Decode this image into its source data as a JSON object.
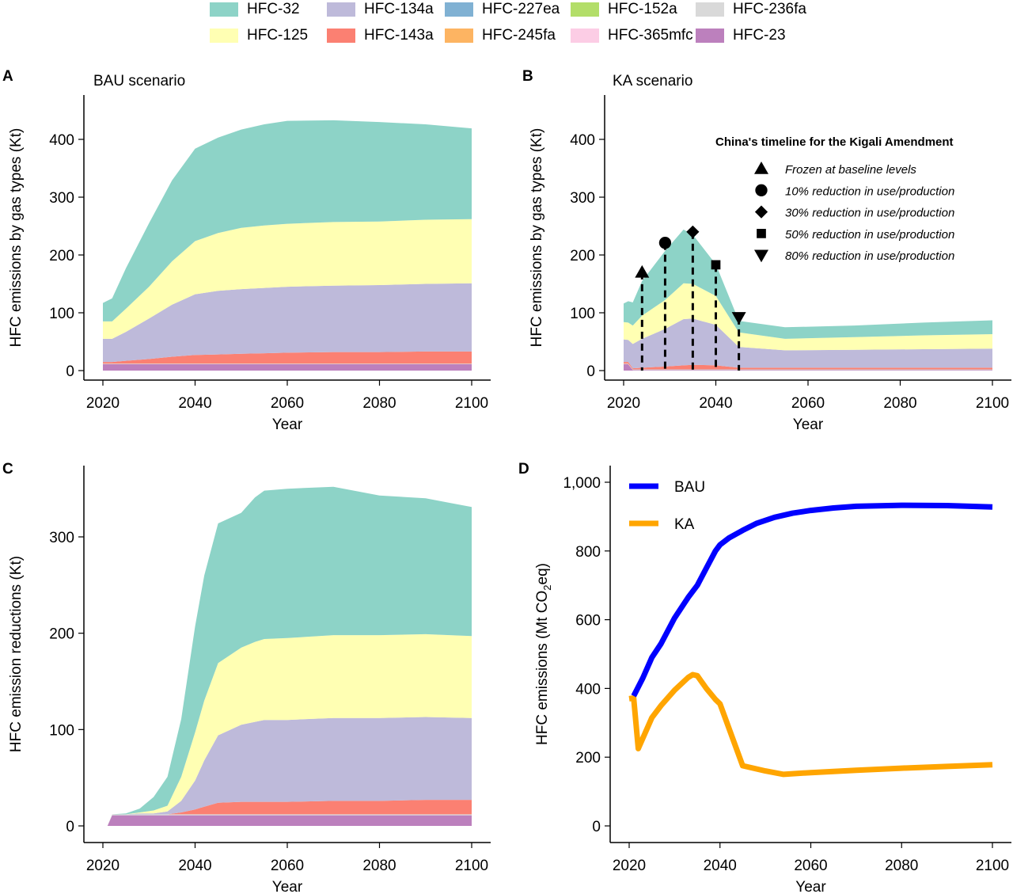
{
  "legend": {
    "items": [
      {
        "name": "HFC-32",
        "color": "#8DD3C7"
      },
      {
        "name": "HFC-134a",
        "color": "#BEBADA"
      },
      {
        "name": "HFC-227ea",
        "color": "#80B1D3"
      },
      {
        "name": "HFC-152a",
        "color": "#B3DE69"
      },
      {
        "name": "HFC-236fa",
        "color": "#D9D9D9"
      },
      {
        "name": "HFC-125",
        "color": "#FFFFB3"
      },
      {
        "name": "HFC-143a",
        "color": "#FB8072"
      },
      {
        "name": "HFC-245fa",
        "color": "#FDB462"
      },
      {
        "name": "HFC-365mfc",
        "color": "#FCCDE5"
      },
      {
        "name": "HFC-23",
        "color": "#BC80BD"
      }
    ]
  },
  "chart_data": [
    {
      "panel": "A",
      "type": "area",
      "stacked": true,
      "title": "BAU scenario",
      "xlabel": "Year",
      "ylabel": "HFC emissions by gas types (Kt)",
      "xlim": [
        2020,
        2100
      ],
      "ylim": [
        0,
        460
      ],
      "xticks": [
        2020,
        2040,
        2060,
        2080,
        2100
      ],
      "yticks": [
        0,
        100,
        200,
        300,
        400
      ],
      "x": [
        2020,
        2022,
        2025,
        2030,
        2035,
        2040,
        2045,
        2050,
        2055,
        2060,
        2070,
        2080,
        2090,
        2100
      ],
      "series": [
        {
          "name": "HFC-23",
          "values": [
            11,
            11,
            11,
            11,
            11,
            11,
            11,
            11,
            11,
            11,
            11,
            11,
            11,
            11
          ]
        },
        {
          "name": "HFC-236fa",
          "values": [
            1,
            1,
            1,
            1,
            1,
            1,
            1,
            1,
            1,
            1,
            1,
            1,
            1,
            1
          ]
        },
        {
          "name": "HFC-143a",
          "values": [
            3,
            3,
            5,
            8,
            12,
            15,
            16,
            17,
            18,
            19,
            20,
            20,
            21,
            21
          ]
        },
        {
          "name": "HFC-134a",
          "values": [
            40,
            40,
            50,
            70,
            90,
            105,
            110,
            112,
            113,
            114,
            115,
            116,
            117,
            118
          ]
        },
        {
          "name": "HFC-125",
          "values": [
            30,
            30,
            40,
            55,
            75,
            92,
            100,
            106,
            108,
            109,
            110,
            110,
            111,
            111
          ]
        },
        {
          "name": "HFC-32",
          "values": [
            32,
            40,
            70,
            110,
            140,
            160,
            165,
            170,
            175,
            178,
            176,
            172,
            165,
            157
          ]
        }
      ]
    },
    {
      "panel": "B",
      "type": "area",
      "stacked": true,
      "title": "KA scenario",
      "xlabel": "Year",
      "ylabel": "HFC emissions by gas types (Kt)",
      "xlim": [
        2020,
        2100
      ],
      "ylim": [
        0,
        460
      ],
      "xticks": [
        2020,
        2040,
        2060,
        2080,
        2100
      ],
      "yticks": [
        0,
        100,
        200,
        300,
        400
      ],
      "x": [
        2020,
        2021,
        2022,
        2024,
        2029,
        2033,
        2035,
        2040,
        2045,
        2055,
        2070,
        2085,
        2100
      ],
      "series": [
        {
          "name": "HFC-23",
          "values": [
            11,
            11,
            1,
            1,
            1,
            1,
            1,
            1,
            1,
            1,
            1,
            1,
            1
          ]
        },
        {
          "name": "HFC-236fa",
          "values": [
            1,
            1,
            1,
            1,
            1,
            1,
            1,
            1,
            1,
            1,
            1,
            1,
            1
          ]
        },
        {
          "name": "HFC-143a",
          "values": [
            3,
            3,
            2,
            3,
            5,
            7,
            8,
            7,
            3,
            3,
            3,
            3,
            3
          ]
        },
        {
          "name": "HFC-134a",
          "values": [
            39,
            38,
            42,
            50,
            65,
            80,
            80,
            70,
            36,
            30,
            31,
            32,
            33
          ]
        },
        {
          "name": "HFC-125",
          "values": [
            30,
            30,
            32,
            40,
            50,
            62,
            60,
            50,
            25,
            20,
            22,
            24,
            25
          ]
        },
        {
          "name": "HFC-32",
          "values": [
            32,
            37,
            40,
            60,
            85,
            93,
            85,
            55,
            20,
            20,
            20,
            22,
            24
          ]
        }
      ],
      "markers": {
        "title": "China's timeline for the Kigali Amendment",
        "items": [
          {
            "year": 2024,
            "value": 170,
            "shape": "triangle-up",
            "label": "Frozen at baseline levels"
          },
          {
            "year": 2029,
            "value": 221,
            "shape": "circle",
            "label": "10% reduction in use/production"
          },
          {
            "year": 2035,
            "value": 240,
            "shape": "diamond",
            "label": "30% reduction in use/production"
          },
          {
            "year": 2040,
            "value": 183,
            "shape": "square",
            "label": "50% reduction in use/production"
          },
          {
            "year": 2045,
            "value": 92,
            "shape": "triangle-down",
            "label": "80% reduction in use/production"
          }
        ]
      }
    },
    {
      "panel": "C",
      "type": "area",
      "stacked": true,
      "title": "",
      "xlabel": "Year",
      "ylabel": "HFC emission reductions (Kt)",
      "xlim": [
        2020,
        2100
      ],
      "ylim": [
        0,
        375
      ],
      "xticks": [
        2020,
        2040,
        2060,
        2080,
        2100
      ],
      "yticks": [
        0,
        100,
        200,
        300
      ],
      "x": [
        2021,
        2022,
        2025,
        2028,
        2031,
        2034,
        2037,
        2040,
        2042,
        2045,
        2050,
        2053,
        2055,
        2060,
        2070,
        2080,
        2090,
        2100
      ],
      "series": [
        {
          "name": "HFC-23",
          "values": [
            0,
            11,
            11,
            11,
            11,
            11,
            11,
            11,
            11,
            11,
            11,
            11,
            11,
            11,
            11,
            11,
            11,
            11
          ]
        },
        {
          "name": "HFC-236fa",
          "values": [
            0,
            1,
            1,
            1,
            1,
            1,
            1,
            1,
            1,
            1,
            1,
            1,
            1,
            1,
            1,
            1,
            1,
            1
          ]
        },
        {
          "name": "HFC-143a",
          "values": [
            0,
            0,
            0,
            0,
            0,
            0,
            2,
            5,
            8,
            12,
            13,
            13,
            13,
            13,
            14,
            14,
            15,
            15
          ]
        },
        {
          "name": "HFC-134a",
          "values": [
            0,
            0,
            0,
            1,
            1,
            3,
            12,
            30,
            48,
            70,
            80,
            83,
            85,
            85,
            86,
            86,
            86,
            85
          ]
        },
        {
          "name": "HFC-125",
          "values": [
            0,
            0,
            0,
            1,
            3,
            6,
            25,
            50,
            62,
            75,
            80,
            83,
            84,
            85,
            86,
            86,
            86,
            85
          ]
        },
        {
          "name": "HFC-32",
          "values": [
            0,
            0,
            1,
            4,
            14,
            30,
            60,
            110,
            130,
            145,
            140,
            150,
            154,
            155,
            154,
            145,
            141,
            134
          ]
        }
      ]
    },
    {
      "panel": "D",
      "type": "line",
      "title": "",
      "xlabel": "Year",
      "ylabel": "HFC emissions (Mt CO2eq)",
      "xlim": [
        2020,
        2100
      ],
      "ylim": [
        0,
        1000
      ],
      "xticks": [
        2020,
        2040,
        2060,
        2080,
        2100
      ],
      "yticks": [
        0,
        200,
        400,
        600,
        800,
        1000
      ],
      "legend": "top-left",
      "series": [
        {
          "name": "BAU",
          "color": "#0000FF",
          "x": [
            2021,
            2023,
            2025,
            2027,
            2030,
            2033,
            2035,
            2037,
            2039,
            2040,
            2042,
            2045,
            2048,
            2052,
            2056,
            2060,
            2065,
            2070,
            2080,
            2090,
            2100
          ],
          "values": [
            378,
            430,
            490,
            530,
            605,
            665,
            700,
            750,
            800,
            818,
            838,
            860,
            880,
            898,
            910,
            918,
            925,
            930,
            933,
            932,
            928
          ]
        },
        {
          "name": "KA",
          "color": "#FFA500",
          "x": [
            2020,
            2021,
            2022,
            2025,
            2027,
            2030,
            2033,
            2034,
            2035,
            2037,
            2039,
            2040,
            2045,
            2050,
            2054,
            2060,
            2070,
            2080,
            2090,
            2100
          ],
          "values": [
            370,
            372,
            225,
            315,
            350,
            395,
            432,
            440,
            437,
            400,
            368,
            355,
            175,
            160,
            150,
            155,
            162,
            168,
            173,
            178
          ]
        }
      ]
    }
  ],
  "panels": {
    "A": {
      "letter": "A"
    },
    "B": {
      "letter": "B"
    },
    "C": {
      "letter": "C"
    },
    "D": {
      "letter": "D"
    }
  }
}
